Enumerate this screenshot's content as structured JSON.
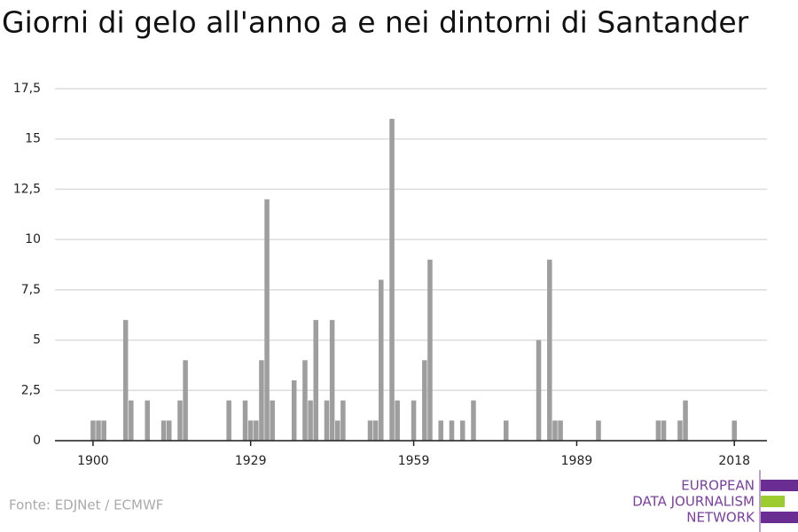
{
  "chart_data": {
    "type": "bar",
    "title": "Giorni di gelo all'anno a e nei dintorni di Santander",
    "source": "Fonte: EDJNet / ECMWF",
    "logo": [
      "EUROPEAN",
      "DATA JOURNALISM",
      "NETWORK"
    ],
    "x": [
      1900,
      1901,
      1902,
      1906,
      1907,
      1910,
      1913,
      1914,
      1916,
      1917,
      1925,
      1928,
      1929,
      1930,
      1931,
      1932,
      1933,
      1937,
      1939,
      1940,
      1941,
      1943,
      1944,
      1945,
      1946,
      1951,
      1952,
      1953,
      1955,
      1956,
      1959,
      1961,
      1962,
      1964,
      1966,
      1968,
      1970,
      1976,
      1982,
      1984,
      1985,
      1986,
      1993,
      2004,
      2005,
      2008,
      2009,
      2018
    ],
    "values": [
      1,
      1,
      1,
      6,
      2,
      2,
      1,
      1,
      2,
      4,
      2,
      2,
      1,
      1,
      4,
      12,
      2,
      3,
      4,
      2,
      6,
      2,
      6,
      1,
      2,
      1,
      1,
      8,
      16,
      2,
      2,
      4,
      9,
      1,
      1,
      1,
      2,
      1,
      5,
      9,
      1,
      1,
      1,
      1,
      1,
      1,
      2,
      1
    ],
    "color": "#9e9e9e",
    "xlim": [
      1893,
      2024
    ],
    "xticks": [
      1900,
      1929,
      1959,
      1989,
      2018
    ],
    "ylim": [
      0,
      17.5
    ],
    "yticks": [
      0,
      {
        "value": 2.5,
        "label": "2,5"
      },
      5,
      {
        "value": 7.5,
        "label": "7,5"
      },
      10,
      {
        "value": 12.5,
        "label": "12,5"
      },
      15,
      {
        "value": 17.5,
        "label": "17,5"
      }
    ],
    "grid": true
  }
}
